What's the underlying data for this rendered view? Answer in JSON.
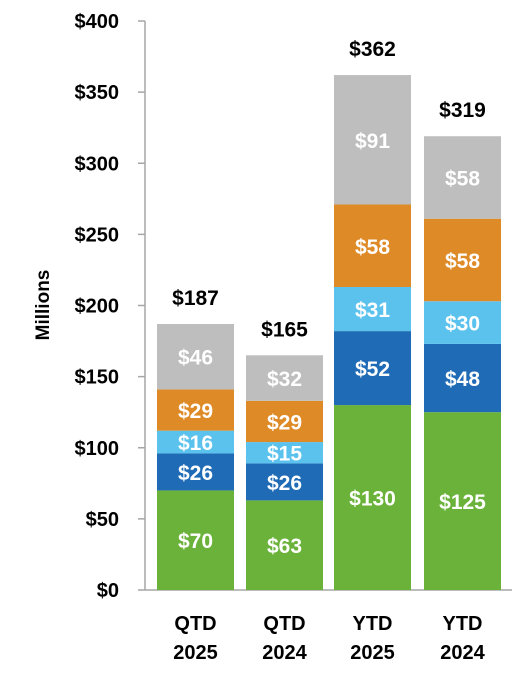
{
  "chart_data": {
    "type": "bar",
    "stacked": true,
    "categories": [
      [
        "QTD",
        "2025"
      ],
      [
        "QTD",
        "2024"
      ],
      [
        "YTD",
        "2025"
      ],
      [
        "YTD",
        "2024"
      ]
    ],
    "ylabel": "Millions",
    "ylim": [
      0,
      400
    ],
    "yticks": [
      0,
      50,
      100,
      150,
      200,
      250,
      300,
      350,
      400
    ],
    "ytick_labels": [
      "$0",
      "$50",
      "$100",
      "$150",
      "$200",
      "$250",
      "$300",
      "$350",
      "$400"
    ],
    "grid": false,
    "legend": "none",
    "series": [
      {
        "color": "#6ab23a",
        "values": [
          70,
          63,
          130,
          125
        ],
        "labels": [
          "$70",
          "$63",
          "$130",
          "$125"
        ]
      },
      {
        "color": "#1f6bb5",
        "values": [
          26,
          26,
          52,
          48
        ],
        "labels": [
          "$26",
          "$26",
          "$52",
          "$48"
        ]
      },
      {
        "color": "#5bc2ee",
        "values": [
          16,
          15,
          31,
          30
        ],
        "labels": [
          "$16",
          "$15",
          "$31",
          "$30"
        ]
      },
      {
        "color": "#de8a27",
        "values": [
          29,
          29,
          58,
          58
        ],
        "labels": [
          "$29",
          "$29",
          "$58",
          "$58"
        ]
      },
      {
        "color": "#bebebe",
        "values": [
          46,
          32,
          91,
          58
        ],
        "labels": [
          "$46",
          "$32",
          "$91",
          "$58"
        ]
      }
    ],
    "totals": [
      187,
      165,
      362,
      319
    ],
    "total_labels": [
      "$187",
      "$165",
      "$362",
      "$319"
    ]
  }
}
